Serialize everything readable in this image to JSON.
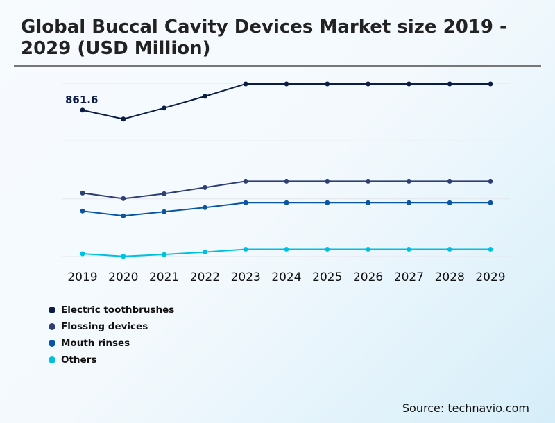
{
  "title": "Global Buccal Cavity Devices Market size 2019 - 2029 (USD Million)",
  "source": "Source: technavio.com",
  "chart_data": {
    "type": "line",
    "title": "Global Buccal Cavity Devices Market size 2019 - 2029 (USD Million)",
    "categories": [
      "2019",
      "2020",
      "2021",
      "2022",
      "2023",
      "2024",
      "2025",
      "2026",
      "2027",
      "2028",
      "2029"
    ],
    "annotation": "861.6",
    "grid": true,
    "legend": "bottom-left",
    "ylim": [
      0,
      1020
    ],
    "series": [
      {
        "name": "Electric toothbrushes",
        "color": "#0b1d45",
        "values": [
          861.6,
          808.8,
          873.8,
          942.9,
          1016,
          1016,
          1016,
          1016,
          1016,
          1016,
          1016
        ]
      },
      {
        "name": "Flossing devices",
        "color": "#2e3f73",
        "values": [
          373.9,
          341.4,
          369.8,
          406.4,
          443,
          443,
          443,
          443,
          443,
          443,
          443
        ]
      },
      {
        "name": "Mouth rinses",
        "color": "#0a55a3",
        "values": [
          268.2,
          239.8,
          264.2,
          288.5,
          317,
          317,
          317,
          317,
          317,
          317,
          317
        ]
      },
      {
        "name": "Others",
        "color": "#00c0e0",
        "values": [
          16.3,
          1,
          12,
          26,
          43,
          43,
          43,
          43,
          43,
          43,
          43
        ]
      }
    ]
  }
}
